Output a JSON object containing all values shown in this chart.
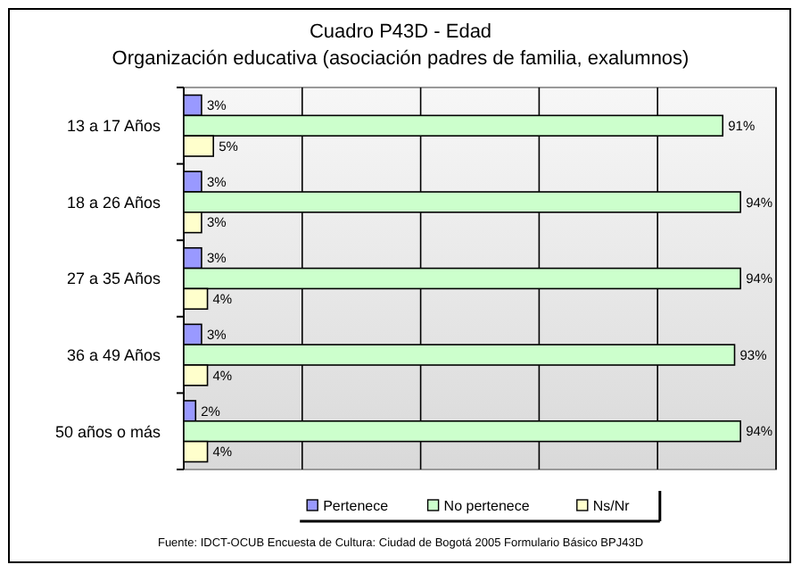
{
  "chart_data": {
    "type": "bar",
    "orientation": "horizontal",
    "title": "Cuadro P43D - Edad",
    "subtitle": "Organización educativa (asociación padres de familia, exalumnos)",
    "categories": [
      "13 a 17 Años",
      "18 a 26 Años",
      "27 a 35 Años",
      "36 a 49 Años",
      "50 años o más"
    ],
    "series": [
      {
        "name": "Pertenece",
        "color": "#9999ff",
        "values": [
          3,
          3,
          3,
          3,
          2
        ],
        "value_labels": [
          "3%",
          "3%",
          "3%",
          "3%",
          "2%"
        ]
      },
      {
        "name": "No pertenece",
        "color": "#ccffcc",
        "values": [
          91,
          94,
          94,
          93,
          94
        ],
        "value_labels": [
          "91%",
          "94%",
          "94%",
          "93%",
          "94%"
        ]
      },
      {
        "name": "Ns/Nr",
        "color": "#ffffcc",
        "values": [
          5,
          3,
          4,
          4,
          4
        ],
        "value_labels": [
          "5%",
          "3%",
          "4%",
          "4%",
          "4%"
        ]
      }
    ],
    "xlim": [
      0,
      100
    ],
    "xticks": [
      {
        "value": 0,
        "label": null
      },
      {
        "value": 20,
        "label": null
      },
      {
        "value": 40,
        "label": null
      },
      {
        "value": 60,
        "label": null
      },
      {
        "value": 80,
        "label": null
      },
      {
        "value": 100,
        "label": null
      }
    ],
    "tick_labels": "y",
    "grid": "x",
    "legend": "bottom",
    "annotations": [
      "Fuente: IDCT-OCUB Encuesta de Cultura: Ciudad de Bogotá 2005 Formulario Básico BPJ43D"
    ]
  }
}
